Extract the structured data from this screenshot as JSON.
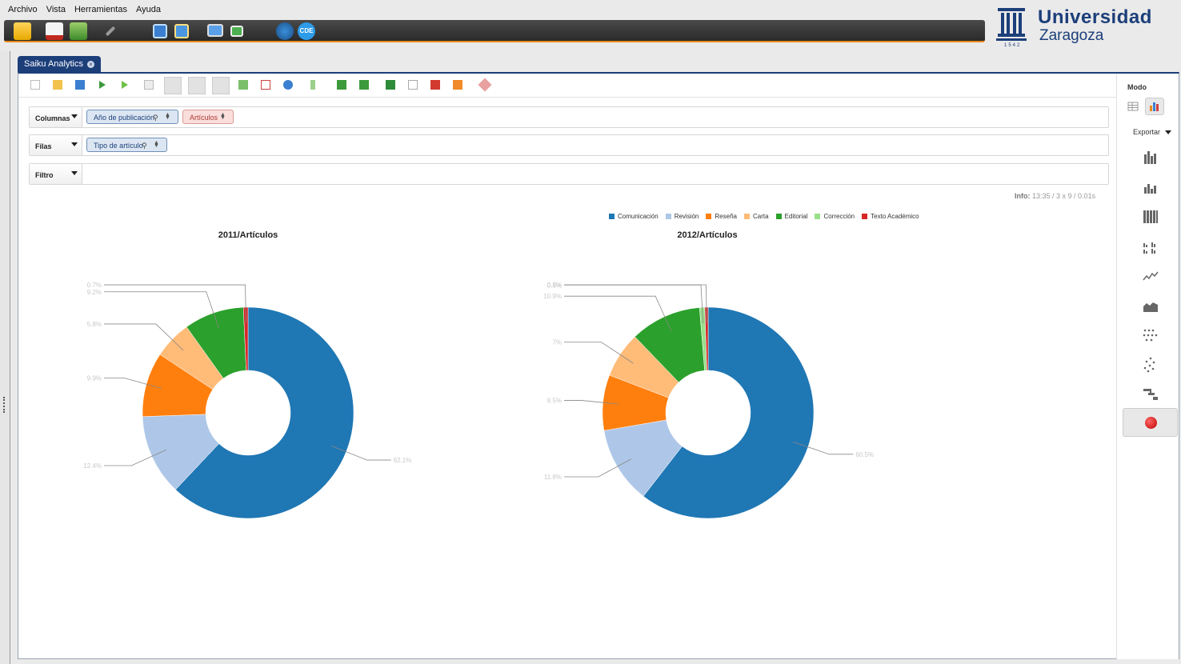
{
  "menu": [
    "Archivo",
    "Vista",
    "Herramientas",
    "Ayuda"
  ],
  "logo": {
    "line1": "Universidad",
    "line2": "Zaragoza",
    "year": "1542"
  },
  "tab": {
    "label": "Saiku Analytics"
  },
  "drop_zones": {
    "columns": {
      "label": "Columnas",
      "pills": [
        "Año de publicación",
        "Artículos"
      ]
    },
    "rows": {
      "label": "Filas",
      "pills": [
        "Tipo de artículo"
      ]
    },
    "filter": {
      "label": "Filtro"
    }
  },
  "info": {
    "label": "Info:",
    "text": "13:35  /  3 x 9  /  0.01s"
  },
  "right_panel": {
    "mode_label": "Modo",
    "export_label": "Exportar"
  },
  "colors": {
    "accent": "#1c3f7a",
    "toolbar_underline": "#e88a1a",
    "series": [
      "#1f77b4",
      "#aec7e8",
      "#ff7f0e",
      "#ffbb78",
      "#2ca02c",
      "#98df8a",
      "#d62728"
    ]
  },
  "chart_data": {
    "type": "pie",
    "legend": [
      "Comunicación",
      "Revisión",
      "Reseña",
      "Carta",
      "Editorial",
      "Corrección",
      "Texto Académico"
    ],
    "legend_placement": "top-right",
    "charts": [
      {
        "title": "2011/Artículos",
        "categories": [
          "Comunicación",
          "Revisión",
          "Reseña",
          "Carta",
          "Editorial",
          "Corrección",
          "Texto Académico"
        ],
        "values": [
          62.1,
          12.4,
          9.9,
          5.8,
          9.2,
          0,
          0.7
        ],
        "labels": [
          "62.1%",
          "12.4%",
          "9.9%",
          "5.8%",
          "9.2%",
          "",
          "0.7%"
        ]
      },
      {
        "title": "2012/Artículos",
        "categories": [
          "Comunicación",
          "Revisión",
          "Reseña",
          "Carta",
          "Editorial",
          "Corrección",
          "Texto Académico"
        ],
        "values": [
          60.5,
          11.8,
          8.5,
          7,
          10.9,
          0.8,
          0.5
        ],
        "labels": [
          "60.5%",
          "11.8%",
          "8.5%",
          "7%",
          "10.9%",
          "0.8%",
          "0.5%"
        ]
      }
    ]
  }
}
